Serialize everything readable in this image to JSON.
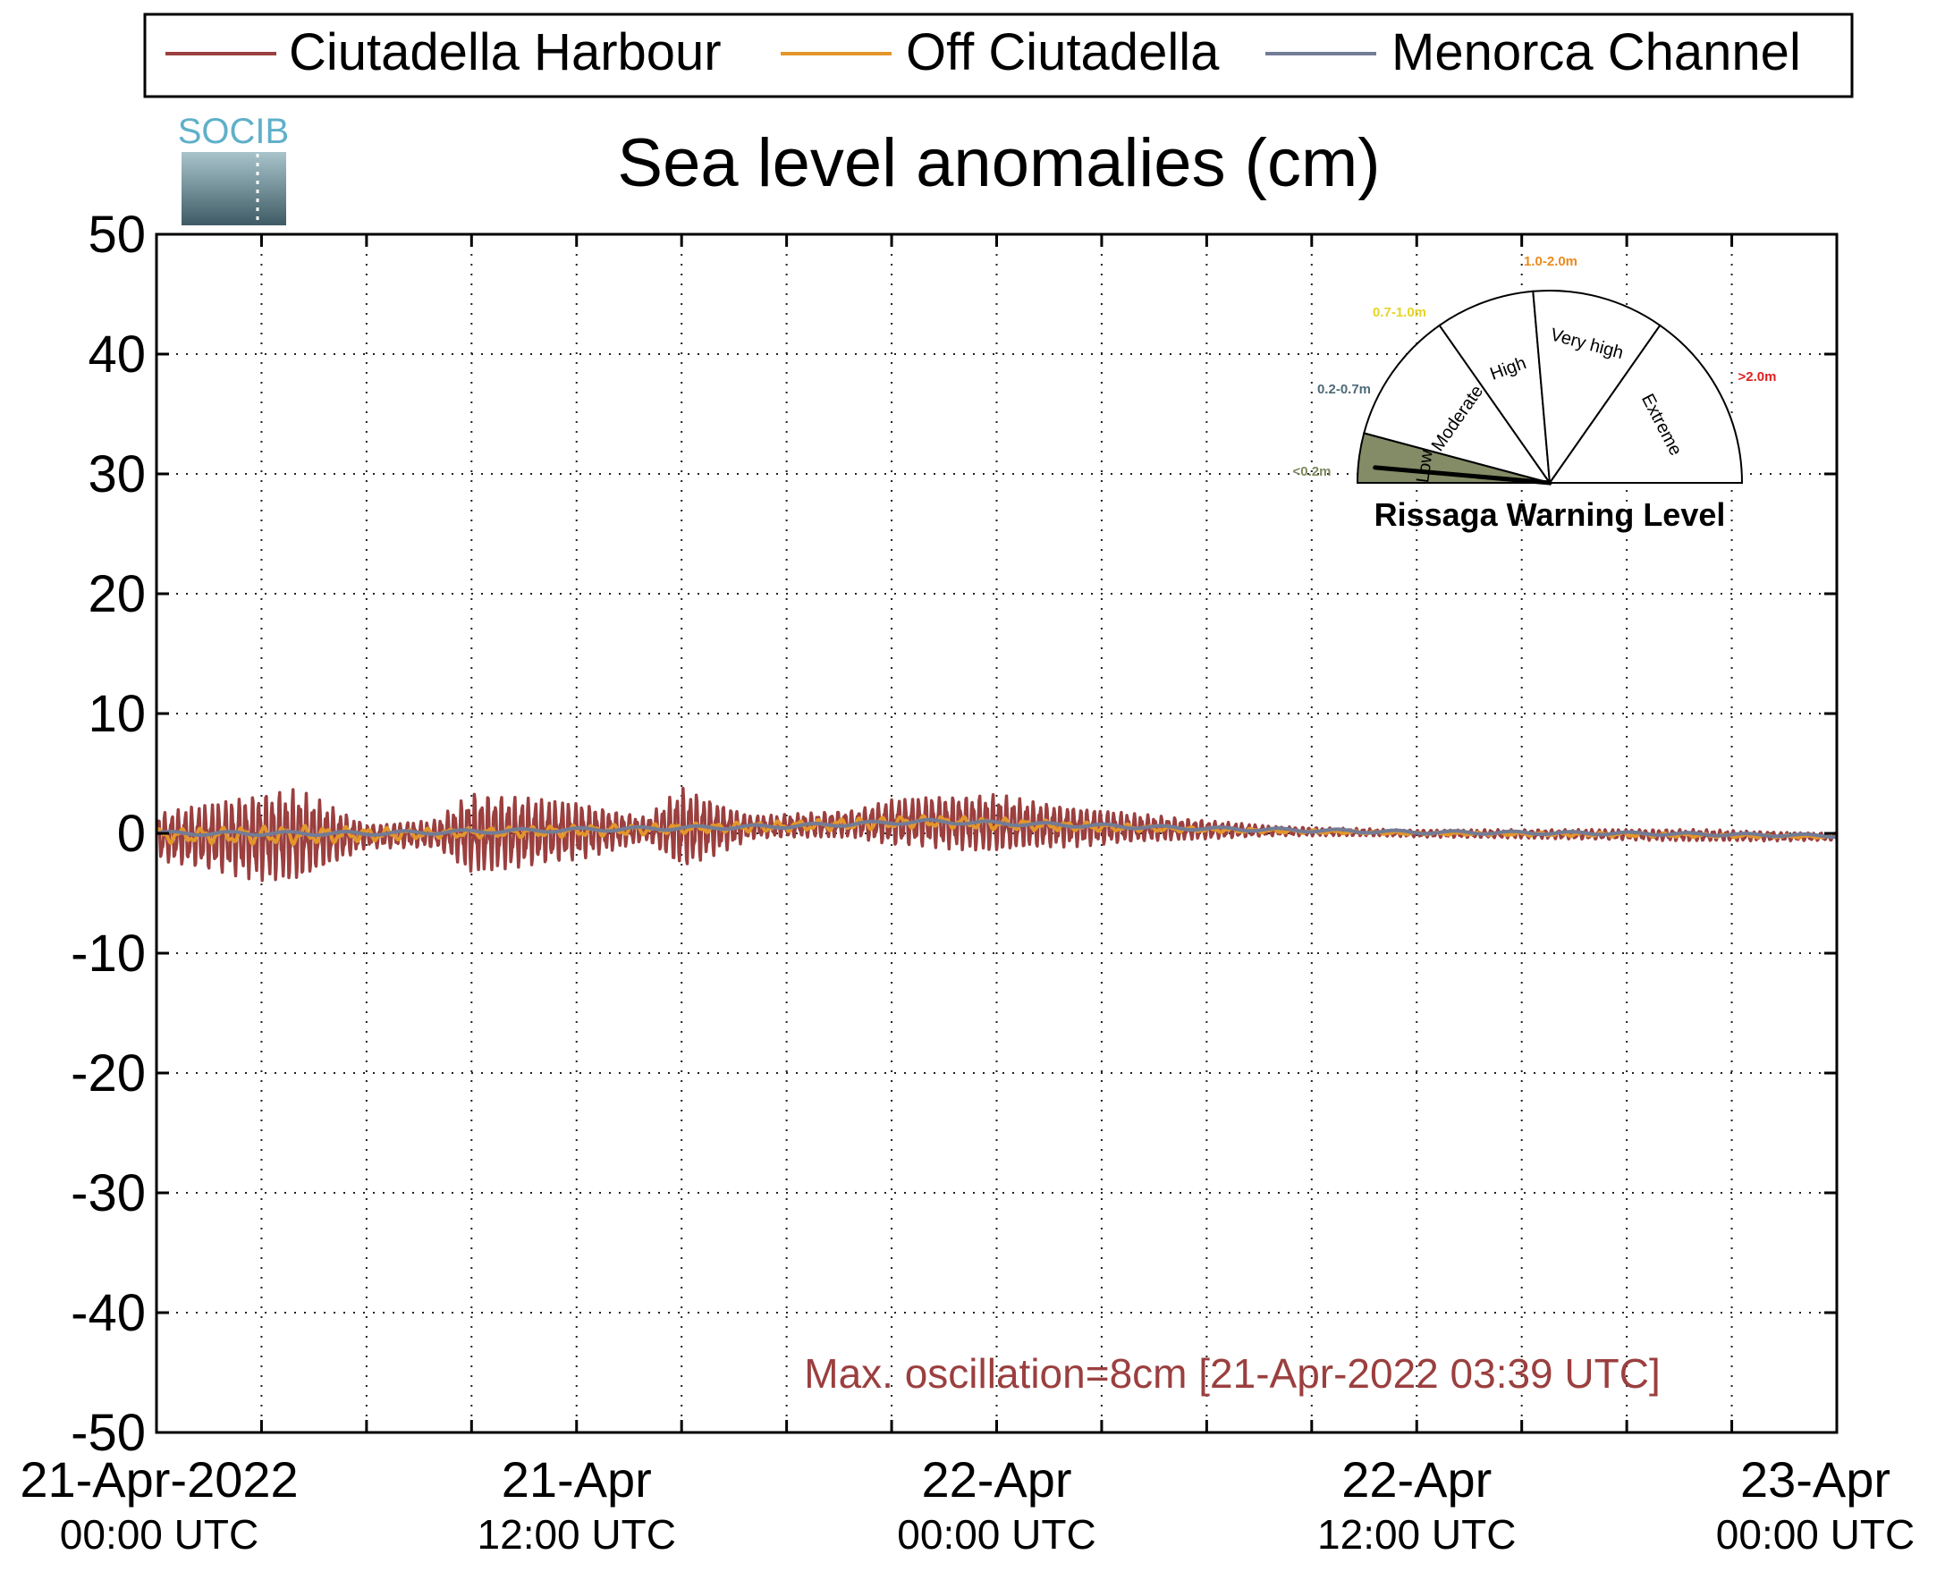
{
  "chart_data": {
    "type": "line",
    "title": "Sea level anomalies (cm)",
    "xlabel": "",
    "ylabel": "",
    "ylim": [
      -50,
      50
    ],
    "yticks": [
      50,
      40,
      30,
      20,
      10,
      0,
      -10,
      -20,
      -30,
      -40,
      -50
    ],
    "xlim": [
      "2022-04-21 00:00 UTC",
      "2022-04-23 00:00 UTC"
    ],
    "xticks": [
      {
        "line1": "21-Apr-2022",
        "line2": "00:00 UTC",
        "hours": 0
      },
      {
        "line1": "21-Apr",
        "line2": "12:00 UTC",
        "hours": 12
      },
      {
        "line1": "22-Apr",
        "line2": "00:00 UTC",
        "hours": 24
      },
      {
        "line1": "22-Apr",
        "line2": "12:00 UTC",
        "hours": 36
      },
      {
        "line1": "23-Apr",
        "line2": "00:00 UTC",
        "hours": 48
      }
    ],
    "minor_grid_hours": [
      3,
      6,
      9,
      15,
      18,
      21,
      27,
      30,
      33,
      39,
      42,
      45
    ],
    "grid": "dotted",
    "legend_position": "top",
    "series": [
      {
        "name": "Ciutadella Harbour",
        "color": "#9b3f3f",
        "envelope_hours": [
          0,
          2,
          3,
          4,
          6,
          8,
          9,
          12,
          14,
          15,
          17,
          18,
          20,
          21,
          24,
          25,
          27,
          28,
          30,
          32,
          35,
          36,
          40,
          44,
          48
        ],
        "envelope_cm": [
          2.0,
          3.2,
          3.8,
          4.0,
          1.0,
          1.2,
          3.5,
          2.5,
          1.0,
          3.5,
          1.0,
          1.0,
          1.2,
          2.0,
          2.5,
          2.0,
          1.5,
          1.2,
          0.8,
          0.4,
          0.3,
          0.3,
          0.4,
          0.5,
          0.3
        ],
        "mean_hours": [
          0,
          6,
          12,
          18,
          22,
          26,
          30,
          36,
          42,
          48
        ],
        "mean_cm": [
          -0.3,
          -0.2,
          0.2,
          0.6,
          1.0,
          0.6,
          0.3,
          0.0,
          -0.1,
          -0.3
        ]
      },
      {
        "name": "Off Ciutadella",
        "color": "#e3962b",
        "envelope_hours": [
          0,
          4,
          8,
          12,
          16,
          20,
          24,
          30,
          36,
          42,
          48
        ],
        "envelope_cm": [
          0.6,
          0.8,
          0.4,
          0.5,
          0.4,
          0.5,
          0.5,
          0.2,
          0.1,
          0.2,
          0.1
        ],
        "mean_hours": [
          0,
          6,
          12,
          18,
          22,
          26,
          30,
          36,
          42,
          48
        ],
        "mean_cm": [
          -0.2,
          -0.1,
          0.2,
          0.6,
          1.0,
          0.6,
          0.3,
          0.0,
          -0.1,
          -0.3
        ]
      },
      {
        "name": "Menorca Channel",
        "color": "#737c96",
        "envelope_hours": [
          0,
          24,
          48
        ],
        "envelope_cm": [
          0.15,
          0.15,
          0.1
        ],
        "mean_hours": [
          0,
          6,
          12,
          18,
          22,
          26,
          30,
          36,
          42,
          48
        ],
        "mean_cm": [
          0.0,
          0.0,
          0.3,
          0.6,
          1.0,
          0.7,
          0.4,
          0.1,
          0.0,
          -0.2
        ]
      }
    ],
    "annotation": {
      "text": "Max. oscillation=8cm [21-Apr-2022 03:39 UTC]",
      "color": "#9b3f3f"
    }
  },
  "logo": {
    "text": "SOCIB",
    "text_color": "#5fb0c9",
    "gradient_top": "#a9c4cb",
    "gradient_bottom": "#3e5b65"
  },
  "gauge": {
    "title": "Rissaga Warning Level",
    "value_level": "Low",
    "levels": [
      {
        "name": "Low",
        "range": "<0.2m",
        "range_color": "#7e8a5e"
      },
      {
        "name": "Moderate",
        "range": "0.2-0.7m",
        "range_color": "#4d6b78"
      },
      {
        "name": "High",
        "range": "0.7-1.0m",
        "range_color": "#e5d426"
      },
      {
        "name": "Very high",
        "range": "1.0-2.0m",
        "range_color": "#ec8a1e"
      },
      {
        "name": "Extreme",
        "range": ">2.0m",
        "range_color": "#e02020"
      }
    ],
    "active_fill": "#838c66"
  }
}
